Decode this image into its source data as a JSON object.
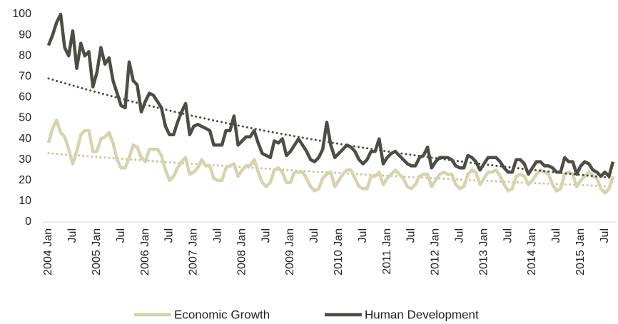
{
  "chart_data": {
    "type": "line",
    "categories": [
      "2004 Jan",
      null,
      null,
      null,
      null,
      null,
      "Jul",
      null,
      null,
      null,
      null,
      null,
      "2005 Jan",
      null,
      null,
      null,
      null,
      null,
      "Jul",
      null,
      null,
      null,
      null,
      null,
      "2006 Jan",
      null,
      null,
      null,
      null,
      null,
      "Jul",
      null,
      null,
      null,
      null,
      null,
      "2007 Jan",
      null,
      null,
      null,
      null,
      null,
      "Jul",
      null,
      null,
      null,
      null,
      null,
      "2008 Jan",
      null,
      null,
      null,
      null,
      null,
      "Jul",
      null,
      null,
      null,
      null,
      null,
      "2009 Jan",
      null,
      null,
      null,
      null,
      null,
      "Jul",
      null,
      null,
      null,
      null,
      null,
      "2010 Jan",
      null,
      null,
      null,
      null,
      null,
      "Jul",
      null,
      null,
      null,
      null,
      null,
      "2011 Jan",
      null,
      null,
      null,
      null,
      null,
      "Jul",
      null,
      null,
      null,
      null,
      null,
      "2012 Jan",
      null,
      null,
      null,
      null,
      null,
      "Jul",
      null,
      null,
      null,
      null,
      null,
      "2013 Jan",
      null,
      null,
      null,
      null,
      null,
      "Jul",
      null,
      null,
      null,
      null,
      null,
      "2014 Jan",
      null,
      null,
      null,
      null,
      null,
      "Jul",
      null,
      null,
      null,
      null,
      null,
      "2015 Jan",
      null,
      null,
      null,
      null,
      null,
      "Jul",
      null,
      null
    ],
    "series": [
      {
        "name": "Economic Growth",
        "color": "#d6d3ae",
        "trend_color": "#c9c6a0",
        "values": [
          38,
          45,
          49,
          43,
          41,
          35,
          28,
          34,
          42,
          44,
          44,
          34,
          34,
          40,
          41,
          43,
          38,
          30,
          26,
          26,
          31,
          37,
          36,
          31,
          29,
          35,
          35,
          35,
          32,
          25,
          20,
          22,
          26,
          29,
          31,
          23,
          24,
          26,
          30,
          27,
          27,
          21,
          20,
          20,
          26,
          27,
          28,
          22,
          25,
          27,
          27,
          30,
          24,
          19,
          17,
          19,
          25,
          26,
          24,
          19,
          19,
          24,
          24,
          24,
          21,
          17,
          15,
          16,
          21,
          23,
          24,
          17,
          20,
          23,
          25,
          25,
          21,
          17,
          16,
          16,
          22,
          22,
          24,
          18,
          21,
          23,
          25,
          23,
          21,
          17,
          16,
          18,
          22,
          23,
          23,
          17,
          20,
          23,
          24,
          23,
          23,
          18,
          16,
          17,
          23,
          25,
          24,
          18,
          21,
          24,
          24,
          25,
          22,
          18,
          15,
          16,
          22,
          23,
          22,
          18,
          20,
          23,
          25,
          24,
          23,
          18,
          15,
          16,
          23,
          24,
          23,
          17,
          20,
          22,
          24,
          22,
          21,
          16,
          14,
          16,
          22
        ]
      },
      {
        "name": "Human Development",
        "color": "#4d4d45",
        "trend_color": "#4d4d45",
        "values": [
          85,
          90,
          96,
          100,
          84,
          80,
          92,
          74,
          86,
          80,
          82,
          65,
          72,
          84,
          76,
          79,
          68,
          62,
          56,
          55,
          77,
          68,
          66,
          53,
          58,
          62,
          61,
          58,
          55,
          46,
          42,
          42,
          48,
          53,
          57,
          42,
          46,
          47,
          46,
          45,
          44,
          37,
          37,
          37,
          44,
          44,
          51,
          37,
          39,
          41,
          41,
          44,
          38,
          33,
          32,
          31,
          39,
          38,
          40,
          32,
          34,
          37,
          40,
          37,
          34,
          30,
          29,
          31,
          35,
          48,
          37,
          31,
          33,
          35,
          37,
          36,
          34,
          30,
          28,
          30,
          34,
          34,
          40,
          28,
          31,
          33,
          34,
          32,
          30,
          28,
          27,
          27,
          31,
          32,
          36,
          26,
          29,
          31,
          31,
          31,
          30,
          27,
          26,
          26,
          32,
          31,
          29,
          25,
          28,
          31,
          31,
          31,
          29,
          26,
          24,
          24,
          30,
          30,
          28,
          23,
          26,
          29,
          29,
          27,
          27,
          26,
          24,
          24,
          31,
          29,
          29,
          23,
          27,
          29,
          28,
          25,
          24,
          22,
          24,
          22,
          29
        ]
      }
    ],
    "trendline": "exponential",
    "ylim": [
      0,
      100
    ],
    "yticks": [
      0,
      10,
      20,
      30,
      40,
      50,
      60,
      70,
      80,
      90,
      100
    ],
    "grid": false,
    "legend": "bottom"
  }
}
